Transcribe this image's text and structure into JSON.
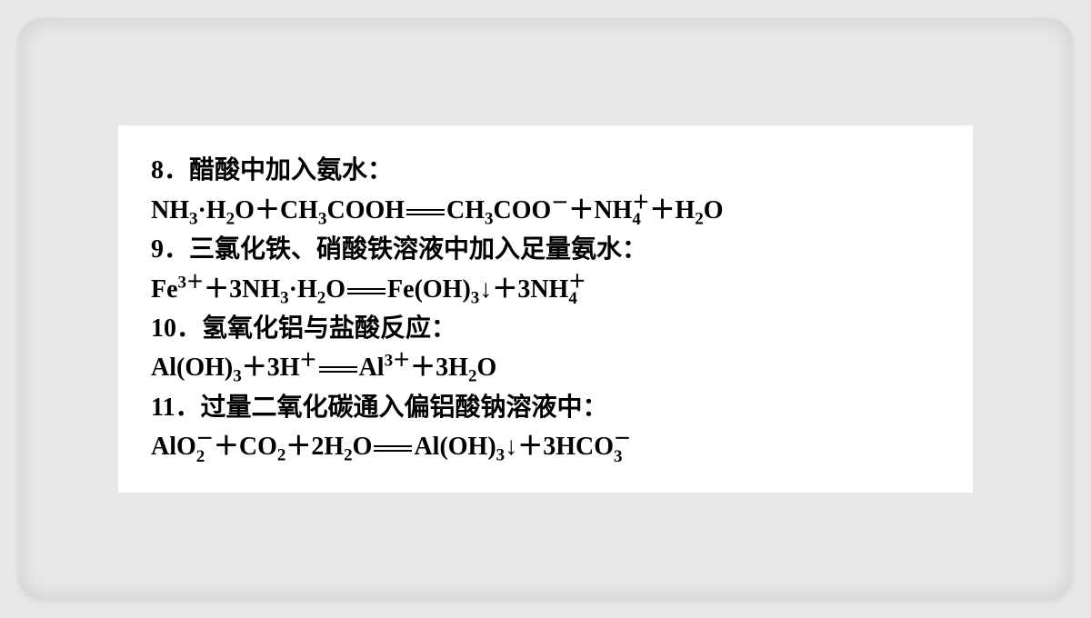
{
  "items": [
    {
      "num": "8",
      "title": "醋酸中加入氨水："
    },
    {
      "num": "9",
      "title": "三氯化铁、硝酸铁溶液中加入足量氨水："
    },
    {
      "num": "10",
      "title": "氢氧化铝与盐酸反应："
    },
    {
      "num": "11",
      "title": "过量二氧化碳通入偏铝酸钠溶液中："
    }
  ],
  "eq8": {
    "NH3": "NH",
    "3": "3",
    "H2O": "H",
    "2": "2",
    "O": "O",
    "CH3COOH": "CH",
    "COOH": "COOH",
    "COO": "COO",
    "minus": "－",
    "plus": "＋",
    "NH4": "NH",
    "4": "4",
    "sup_plus": "＋"
  },
  "eq9": {
    "Fe": "Fe",
    "3plus": "3＋",
    "3NH3": "3NH",
    "FeOH3": "Fe(OH)",
    "down": "↓",
    "3NH4": "3NH"
  },
  "eq10": {
    "AlOH3": "Al(OH)",
    "3H": "3H",
    "Al": "Al",
    "3H2O": "3H"
  },
  "eq11": {
    "AlO2": "AlO",
    "CO2": "CO",
    "2H2O": "2H",
    "AlOH3": "Al(OH)",
    "3HCO3": "3HCO"
  }
}
